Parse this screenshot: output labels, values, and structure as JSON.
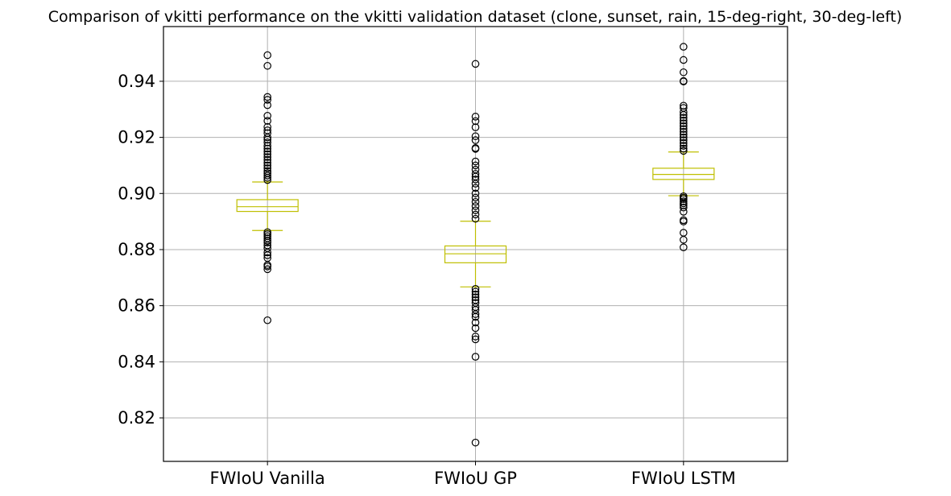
{
  "chart_data": {
    "type": "box",
    "title": "Comparison of vkitti performance on the vkitti validation dataset (clone, sunset, rain, 15-deg-right, 30-deg-left)",
    "xlabel": "",
    "ylabel": "",
    "categories": [
      "FWIoU Vanilla",
      "FWIoU GP",
      "FWIoU LSTM"
    ],
    "ylim": [
      0.8045,
      0.9595
    ],
    "yticks": [
      0.82,
      0.84,
      0.86,
      0.88,
      0.9,
      0.92,
      0.94
    ],
    "ytick_labels": [
      "0.82",
      "0.84",
      "0.86",
      "0.88",
      "0.90",
      "0.92",
      "0.94"
    ],
    "grid": true,
    "box_color": "#bfbf00",
    "flier_color": "#000000",
    "series": [
      {
        "category": "FWIoU Vanilla",
        "whisker_low": 0.8868,
        "q1": 0.8936,
        "median": 0.8953,
        "q3": 0.8978,
        "whisker_high": 0.9041,
        "fliers": [
          0.9493,
          0.9455,
          0.9344,
          0.9334,
          0.9315,
          0.9277,
          0.9259,
          0.9237,
          0.9225,
          0.9215,
          0.92,
          0.9192,
          0.9182,
          0.917,
          0.916,
          0.915,
          0.914,
          0.913,
          0.912,
          0.911,
          0.91,
          0.909,
          0.908,
          0.9072,
          0.9064,
          0.9056,
          0.9048,
          0.8862,
          0.8855,
          0.8848,
          0.884,
          0.8832,
          0.8825,
          0.8815,
          0.8805,
          0.879,
          0.878,
          0.877,
          0.8745,
          0.874,
          0.873,
          0.8548
        ]
      },
      {
        "category": "FWIoU GP",
        "whisker_low": 0.8667,
        "q1": 0.8753,
        "median": 0.8785,
        "q3": 0.8813,
        "whisker_high": 0.8901,
        "fliers": [
          0.9462,
          0.9274,
          0.9258,
          0.9236,
          0.9204,
          0.919,
          0.9162,
          0.9159,
          0.9114,
          0.91,
          0.9085,
          0.907,
          0.906,
          0.905,
          0.9035,
          0.902,
          0.9,
          0.8985,
          0.897,
          0.8955,
          0.894,
          0.8925,
          0.891,
          0.866,
          0.865,
          0.864,
          0.863,
          0.862,
          0.861,
          0.8595,
          0.8585,
          0.857,
          0.856,
          0.854,
          0.852,
          0.849,
          0.848,
          0.8418,
          0.8112
        ]
      },
      {
        "category": "FWIoU LSTM",
        "whisker_low": 0.8992,
        "q1": 0.905,
        "median": 0.9068,
        "q3": 0.909,
        "whisker_high": 0.9148,
        "fliers": [
          0.9523,
          0.9476,
          0.9432,
          0.9401,
          0.9399,
          0.9313,
          0.9305,
          0.929,
          0.928,
          0.927,
          0.926,
          0.925,
          0.924,
          0.923,
          0.922,
          0.921,
          0.92,
          0.919,
          0.918,
          0.917,
          0.916,
          0.9152,
          0.899,
          0.8985,
          0.898,
          0.8972,
          0.8965,
          0.8958,
          0.895,
          0.8935,
          0.8905,
          0.89,
          0.886,
          0.8835,
          0.8808
        ]
      }
    ]
  }
}
